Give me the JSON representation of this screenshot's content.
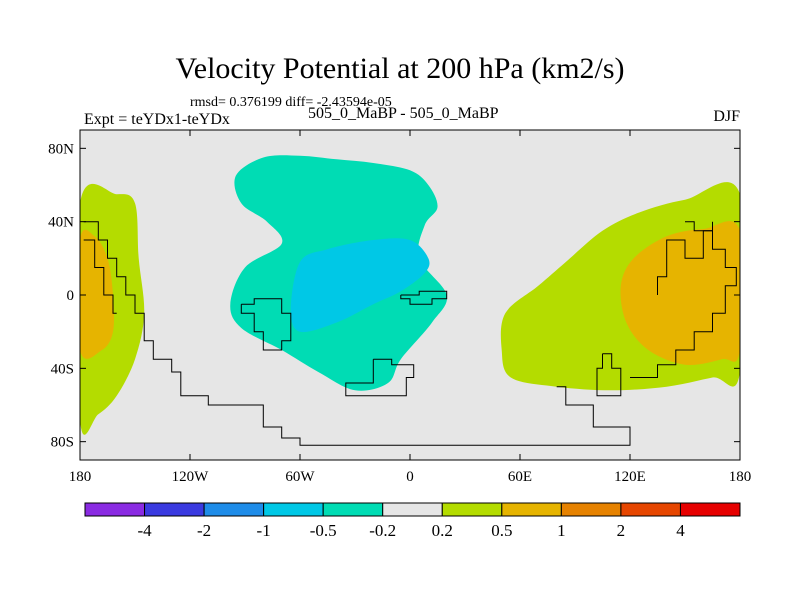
{
  "chart_data": {
    "type": "contour-map",
    "title": "Velocity Potential at 200 hPa (km2/s)",
    "stats": "rmsd= 0.376199 diff= -2.43594e-05",
    "left_label": "Expt = teYDx1-teYDx",
    "center_label": "505_0_MaBP - 505_0_MaBP",
    "right_label": "DJF",
    "x_ticks": [
      "180",
      "120W",
      "60W",
      "0",
      "60E",
      "120E",
      "180"
    ],
    "x_tick_values": [
      -180,
      -120,
      -60,
      0,
      60,
      120,
      180
    ],
    "y_ticks": [
      "80N",
      "40N",
      "0",
      "40S",
      "80S"
    ],
    "y_tick_values": [
      80,
      40,
      0,
      -40,
      -80
    ],
    "xlim": [
      -180,
      180
    ],
    "ylim": [
      -90,
      90
    ],
    "colorbar": {
      "labels": [
        "-4",
        "-2",
        "-1",
        "-0.5",
        "-0.2",
        "0.2",
        "0.5",
        "1",
        "2",
        "4"
      ],
      "colors": [
        "#8a2be2",
        "#3a3ae0",
        "#1e8ce8",
        "#00c8e6",
        "#00dcb4",
        "#e6e6e6",
        "#b4dc00",
        "#e6b400",
        "#e68200",
        "#e64600",
        "#e60000"
      ]
    },
    "regions": [
      {
        "name": "central-negative-large",
        "level": "-0.5 to -0.2",
        "color": "#00dcb4",
        "polygon": [
          [
            -95,
            65
          ],
          [
            -80,
            75
          ],
          [
            -60,
            76
          ],
          [
            -40,
            74
          ],
          [
            -20,
            72
          ],
          [
            0,
            68
          ],
          [
            10,
            60
          ],
          [
            15,
            48
          ],
          [
            8,
            38
          ],
          [
            5,
            20
          ],
          [
            20,
            0
          ],
          [
            12,
            -15
          ],
          [
            -5,
            -35
          ],
          [
            -12,
            -48
          ],
          [
            -30,
            -52
          ],
          [
            -50,
            -42
          ],
          [
            -70,
            -30
          ],
          [
            -92,
            -18
          ],
          [
            -98,
            -5
          ],
          [
            -90,
            15
          ],
          [
            -70,
            28
          ],
          [
            -78,
            40
          ],
          [
            -92,
            50
          ]
        ]
      },
      {
        "name": "central-negative-core",
        "level": "-1 to -0.5",
        "color": "#00c8e6",
        "polygon": [
          [
            -60,
            18
          ],
          [
            -45,
            25
          ],
          [
            -20,
            30
          ],
          [
            0,
            30
          ],
          [
            10,
            20
          ],
          [
            8,
            12
          ],
          [
            -5,
            2
          ],
          [
            -20,
            -5
          ],
          [
            -40,
            -15
          ],
          [
            -60,
            -20
          ],
          [
            -65,
            -8
          ]
        ]
      },
      {
        "name": "east-positive",
        "level": "0.2 to 0.5",
        "color": "#b4dc00",
        "polygon": [
          [
            180,
            55
          ],
          [
            150,
            52
          ],
          [
            125,
            45
          ],
          [
            105,
            35
          ],
          [
            85,
            18
          ],
          [
            70,
            5
          ],
          [
            52,
            -10
          ],
          [
            50,
            -30
          ],
          [
            55,
            -45
          ],
          [
            80,
            -50
          ],
          [
            110,
            -52
          ],
          [
            140,
            -50
          ],
          [
            165,
            -45
          ],
          [
            180,
            -42
          ]
        ]
      },
      {
        "name": "east-positive-core",
        "level": "0.5 to 1",
        "color": "#e6b400",
        "polygon": [
          [
            180,
            35
          ],
          [
            160,
            36
          ],
          [
            140,
            32
          ],
          [
            122,
            20
          ],
          [
            115,
            5
          ],
          [
            118,
            -15
          ],
          [
            130,
            -30
          ],
          [
            150,
            -38
          ],
          [
            170,
            -35
          ],
          [
            180,
            -30
          ]
        ]
      },
      {
        "name": "west-positive",
        "level": "0.2 to 0.5",
        "color": "#b4dc00",
        "polygon": [
          [
            -180,
            50
          ],
          [
            -160,
            55
          ],
          [
            -150,
            50
          ],
          [
            -148,
            20
          ],
          [
            -145,
            -10
          ],
          [
            -150,
            -35
          ],
          [
            -160,
            -55
          ],
          [
            -170,
            -65
          ],
          [
            -180,
            -68
          ]
        ]
      },
      {
        "name": "west-positive-core",
        "level": "0.5 to 1",
        "color": "#e6b400",
        "polygon": [
          [
            -180,
            30
          ],
          [
            -172,
            32
          ],
          [
            -165,
            20
          ],
          [
            -162,
            0
          ],
          [
            -162,
            -20
          ],
          [
            -168,
            -30
          ],
          [
            -180,
            -30
          ]
        ]
      }
    ]
  }
}
